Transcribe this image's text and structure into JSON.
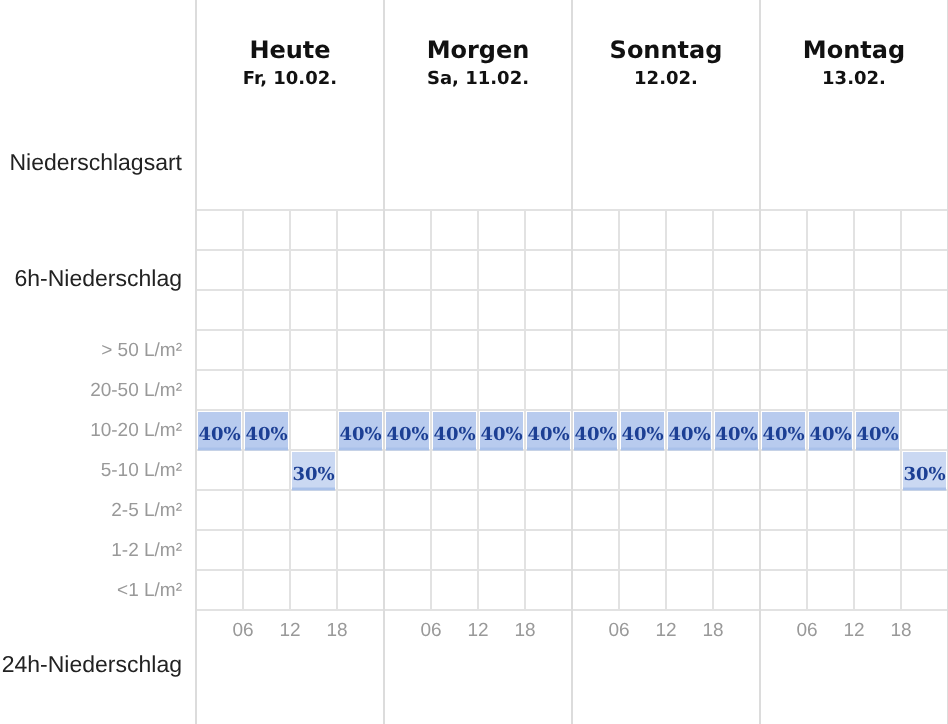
{
  "chart_data": {
    "type": "heatmap",
    "categories": [
      null,
      "06",
      "12",
      "18",
      null,
      "06",
      "12",
      "18",
      null,
      "06",
      "12",
      "18",
      null,
      "06",
      "12",
      "18"
    ],
    "y_categories": [
      "> 50 L/m²",
      "20-50 L/m²",
      "10-20 L/m²",
      "5-10 L/m²",
      "2-5 L/m²",
      "1-2 L/m²",
      "<1 L/m²"
    ],
    "cells": [
      [
        null,
        null,
        null,
        null,
        null,
        null,
        null,
        null,
        null,
        null,
        null,
        null,
        null,
        null,
        null,
        null
      ],
      [
        null,
        null,
        null,
        null,
        null,
        null,
        null,
        null,
        null,
        null,
        null,
        null,
        null,
        null,
        null,
        null
      ],
      [
        40,
        40,
        null,
        40,
        40,
        40,
        40,
        40,
        40,
        40,
        40,
        40,
        40,
        40,
        40,
        null
      ],
      [
        null,
        null,
        30,
        null,
        null,
        null,
        null,
        null,
        null,
        null,
        null,
        null,
        null,
        null,
        null,
        30
      ],
      [
        null,
        null,
        null,
        null,
        null,
        null,
        null,
        null,
        null,
        null,
        null,
        null,
        null,
        null,
        null,
        null
      ],
      [
        null,
        null,
        null,
        null,
        null,
        null,
        null,
        null,
        null,
        null,
        null,
        null,
        null,
        null,
        null,
        null
      ],
      [
        null,
        null,
        null,
        null,
        null,
        null,
        null,
        null,
        null,
        null,
        null,
        null,
        null,
        null,
        null,
        null
      ]
    ],
    "cell_labels": [
      [
        null,
        null,
        null,
        null,
        null,
        null,
        null,
        null,
        null,
        null,
        null,
        null,
        null,
        null,
        null,
        null
      ],
      [
        null,
        null,
        null,
        null,
        null,
        null,
        null,
        null,
        null,
        null,
        null,
        null,
        null,
        null,
        null,
        null
      ],
      [
        "40%",
        "40%",
        null,
        "40%",
        "40%",
        "40%",
        "40%",
        "40%",
        "40%",
        "40%",
        "40%",
        "40%",
        "40%",
        "40%",
        "40%",
        null
      ],
      [
        null,
        null,
        "30%",
        null,
        null,
        null,
        null,
        null,
        null,
        null,
        null,
        null,
        null,
        null,
        null,
        "30%"
      ],
      [
        null,
        null,
        null,
        null,
        null,
        null,
        null,
        null,
        null,
        null,
        null,
        null,
        null,
        null,
        null,
        null
      ],
      [
        null,
        null,
        null,
        null,
        null,
        null,
        null,
        null,
        null,
        null,
        null,
        null,
        null,
        null,
        null,
        null
      ],
      [
        null,
        null,
        null,
        null,
        null,
        null,
        null,
        null,
        null,
        null,
        null,
        null,
        null,
        null,
        null,
        null
      ]
    ],
    "color": "#1c3f94",
    "grid": true,
    "annotations": [
      "Niederschlagsart",
      "6h-Niederschlag",
      "24h-Niederschlag",
      "Heute",
      "Fr, 10.02.",
      "Morgen",
      "Sa, 11.02.",
      "Sonntag",
      "12.02.",
      "Montag",
      "13.02."
    ]
  }
}
